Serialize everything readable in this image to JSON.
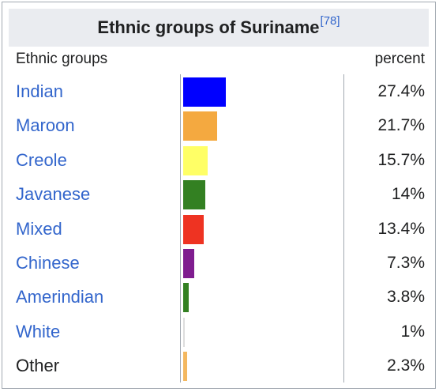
{
  "chart_data": {
    "type": "bar",
    "orientation": "horizontal",
    "title": "Ethnic groups of Suriname",
    "title_ref": "[78]",
    "column_headers": {
      "category": "Ethnic groups",
      "value": "percent"
    },
    "categories": [
      "Indian",
      "Maroon",
      "Creole",
      "Javanese",
      "Mixed",
      "Chinese",
      "Amerindian",
      "White",
      "Other"
    ],
    "values": [
      27.4,
      21.7,
      15.7,
      14,
      13.4,
      7.3,
      3.8,
      1,
      2.3
    ],
    "value_labels": [
      "27.4%",
      "21.7%",
      "15.7%",
      "14%",
      "13.4%",
      "7.3%",
      "3.8%",
      "1%",
      "2.3%"
    ],
    "colors": [
      "#0000ff",
      "#f4a940",
      "#ffff66",
      "#338022",
      "#ee3322",
      "#7f1d8f",
      "#338022",
      "#dddddd",
      "#f4b860"
    ],
    "linked": [
      true,
      true,
      true,
      true,
      true,
      true,
      true,
      true,
      false
    ],
    "xlim": [
      0,
      100
    ],
    "grid": false,
    "legend": "none"
  }
}
